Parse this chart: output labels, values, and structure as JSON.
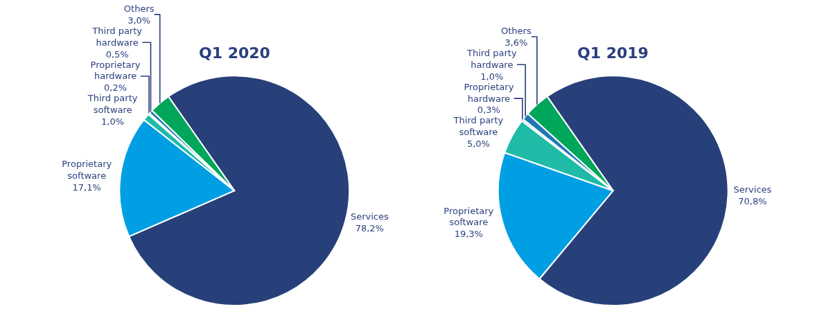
{
  "chart_data": [
    {
      "type": "pie",
      "title": "Q1 2020",
      "categories": [
        "Services",
        "Proprietary software",
        "Third party software",
        "Proprietary hardware",
        "Third party hardware",
        "Others"
      ],
      "values": [
        78.2,
        17.1,
        1.0,
        0.2,
        0.5,
        3.0
      ],
      "value_labels": [
        "78,2%",
        "17,1%",
        "1,0%",
        "0,2%",
        "0,5%",
        "3,0%"
      ],
      "colors": [
        "#27407a",
        "#009fe3",
        "#1fbba6",
        "#a8d8ea",
        "#1f78b4",
        "#00a65a"
      ],
      "legend": false
    },
    {
      "type": "pie",
      "title": "Q1 2019",
      "categories": [
        "Services",
        "Proprietary software",
        "Third party software",
        "Proprietary hardware",
        "Third party hardware",
        "Others"
      ],
      "values": [
        70.8,
        19.3,
        5.0,
        0.3,
        1.0,
        3.6
      ],
      "value_labels": [
        "70,8%",
        "19,3%",
        "5,0%",
        "0,3%",
        "1,0%",
        "3,6%"
      ],
      "colors": [
        "#27407a",
        "#009fe3",
        "#1fbba6",
        "#a8d8ea",
        "#1f78b4",
        "#00a65a"
      ],
      "legend": false
    }
  ]
}
